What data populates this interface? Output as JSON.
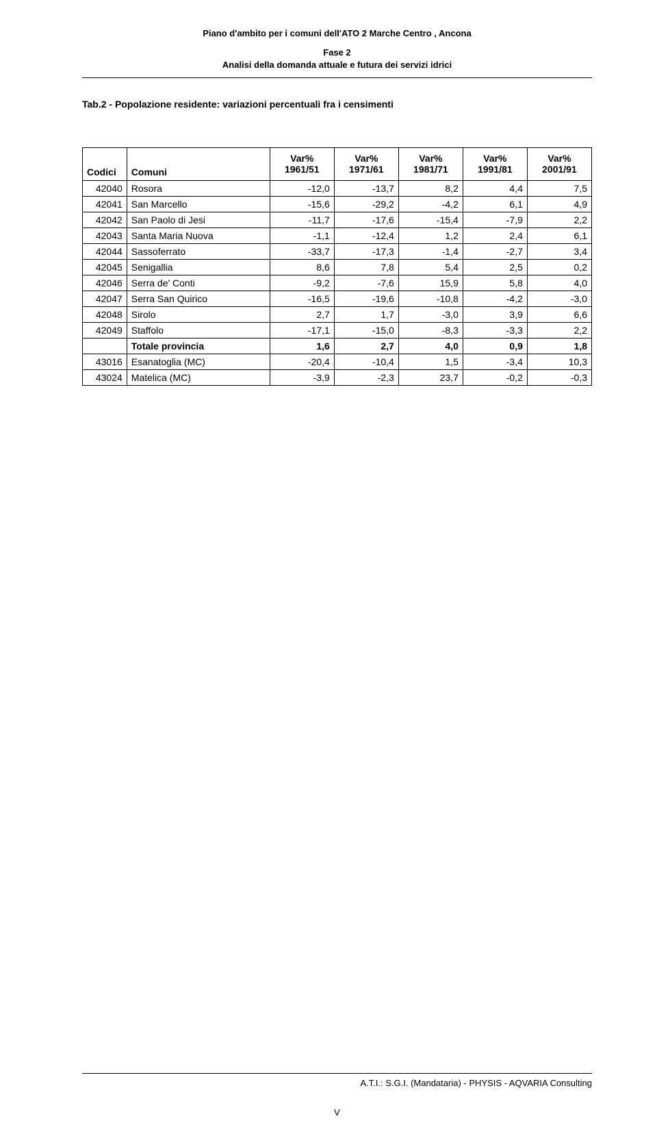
{
  "header": {
    "title": "Piano d'ambito per i comuni dell'ATO 2 Marche Centro , Ancona",
    "phase": "Fase 2",
    "subtitle": "Analisi della domanda attuale e futura dei servizi idrici"
  },
  "table": {
    "title": "Tab.2 - Popolazione residente: variazioni percentuali fra i censimenti",
    "columns": {
      "codici": "Codici",
      "comuni": "Comuni",
      "c1": "Var% 1961/51",
      "c2": "Var% 1971/61",
      "c3": "Var% 1981/71",
      "c4": "Var% 1991/81",
      "c5": "Var% 2001/91"
    },
    "rows": [
      {
        "codice": "42040",
        "comune": "Rosora",
        "v": [
          "-12,0",
          "-13,7",
          "8,2",
          "4,4",
          "7,5"
        ]
      },
      {
        "codice": "42041",
        "comune": "San Marcello",
        "v": [
          "-15,6",
          "-29,2",
          "-4,2",
          "6,1",
          "4,9"
        ]
      },
      {
        "codice": "42042",
        "comune": "San Paolo di Jesi",
        "v": [
          "-11,7",
          "-17,6",
          "-15,4",
          "-7,9",
          "2,2"
        ]
      },
      {
        "codice": "42043",
        "comune": "Santa Maria Nuova",
        "v": [
          "-1,1",
          "-12,4",
          "1,2",
          "2,4",
          "6,1"
        ]
      },
      {
        "codice": "42044",
        "comune": "Sassoferrato",
        "v": [
          "-33,7",
          "-17,3",
          "-1,4",
          "-2,7",
          "3,4"
        ]
      },
      {
        "codice": "42045",
        "comune": "Senigallia",
        "v": [
          "8,6",
          "7,8",
          "5,4",
          "2,5",
          "0,2"
        ]
      },
      {
        "codice": "42046",
        "comune": "Serra de' Conti",
        "v": [
          "-9,2",
          "-7,6",
          "15,9",
          "5,8",
          "4,0"
        ]
      },
      {
        "codice": "42047",
        "comune": "Serra San Quirico",
        "v": [
          "-16,5",
          "-19,6",
          "-10,8",
          "-4,2",
          "-3,0"
        ]
      },
      {
        "codice": "42048",
        "comune": "Sirolo",
        "v": [
          "2,7",
          "1,7",
          "-3,0",
          "3,9",
          "6,6"
        ]
      },
      {
        "codice": "42049",
        "comune": "Staffolo",
        "v": [
          "-17,1",
          "-15,0",
          "-8,3",
          "-3,3",
          "2,2"
        ]
      },
      {
        "codice": "",
        "comune": "Totale provincia",
        "v": [
          "1,6",
          "2,7",
          "4,0",
          "0,9",
          "1,8"
        ],
        "bold": true
      },
      {
        "codice": "43016",
        "comune": "Esanatoglia (MC)",
        "v": [
          "-20,4",
          "-10,4",
          "1,5",
          "-3,4",
          "10,3"
        ]
      },
      {
        "codice": "43024",
        "comune": "Matelica (MC)",
        "v": [
          "-3,9",
          "-2,3",
          "23,7",
          "-0,2",
          "-0,3"
        ]
      }
    ]
  },
  "footer": {
    "text": "A.T.I.: S.G.I. (Mandataria) - PHYSIS - AQVARIA Consulting",
    "page": "V"
  }
}
